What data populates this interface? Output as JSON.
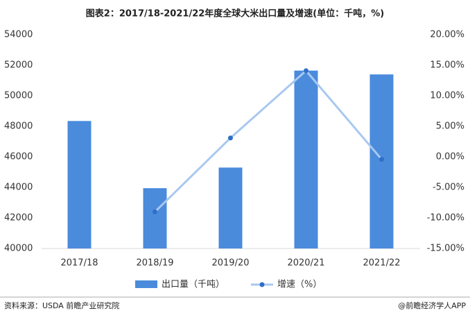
{
  "chart_data": {
    "type": "bar",
    "title": "图表2：2017/18-2021/22年度全球大米出口量及增速(单位：千吨，%)",
    "categories": [
      "2017/18",
      "2018/19",
      "2019/20",
      "2020/21",
      "2021/22"
    ],
    "series": [
      {
        "name": "出口量（千吨）",
        "type": "bar",
        "color": "#4a8bdc",
        "values": [
          48350,
          43950,
          45300,
          51650,
          51400
        ]
      },
      {
        "name": "增速（%）",
        "type": "line",
        "axis": "y2",
        "color": "#a8c8ef",
        "marker_color": "#2f6fc6",
        "values": [
          null,
          -9.0,
          3.1,
          14.1,
          -0.4
        ]
      }
    ],
    "ylim": [
      40000,
      54000
    ],
    "yticks": [
      40000,
      42000,
      44000,
      46000,
      48000,
      50000,
      52000,
      54000
    ],
    "y2lim": [
      -15,
      20
    ],
    "y2ticks": [
      {
        "value": -15,
        "label": "-15.00%"
      },
      {
        "value": -10,
        "label": "-10.00%"
      },
      {
        "value": -5,
        "label": "-5.00%"
      },
      {
        "value": 0,
        "label": "0.00%"
      },
      {
        "value": 5,
        "label": "5.00%"
      },
      {
        "value": 10,
        "label": "10.00%"
      },
      {
        "value": 15,
        "label": "15.00%"
      },
      {
        "value": 20,
        "label": "20.00%"
      }
    ],
    "grid": false,
    "legend": "bottom",
    "source": "资料来源：USDA 前瞻产业研究院",
    "brand": "@前瞻经济学人APP"
  }
}
